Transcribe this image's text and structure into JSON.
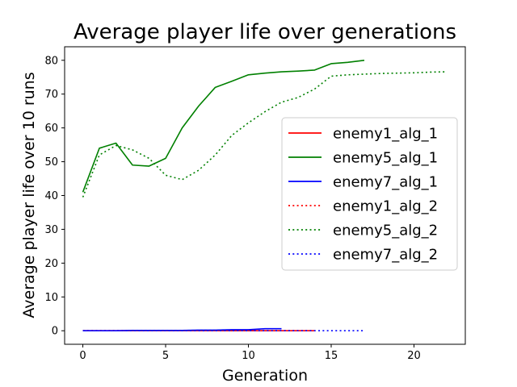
{
  "chart_data": {
    "type": "line",
    "title": "Average player life over generations",
    "xlabel": "Generation",
    "ylabel": "Average player life over 10 runs",
    "xlim": [
      -1.1,
      23.1
    ],
    "ylim": [
      -4,
      84
    ],
    "xticks": [
      0,
      5,
      10,
      15,
      20
    ],
    "yticks": [
      0,
      10,
      20,
      30,
      40,
      50,
      60,
      70,
      80
    ],
    "grid": false,
    "legend_position": "center-right",
    "series": [
      {
        "name": "enemy1_alg_1",
        "color": "#ff0000",
        "style": "solid",
        "x": [
          0,
          1,
          2,
          3,
          4,
          5,
          6,
          7,
          8,
          9,
          10,
          11,
          12,
          13,
          14
        ],
        "y": [
          0,
          0,
          0,
          0,
          0,
          0,
          0,
          0,
          0,
          0,
          0,
          0,
          0,
          0,
          0
        ]
      },
      {
        "name": "enemy5_alg_1",
        "color": "#008000",
        "style": "solid",
        "x": [
          0,
          1,
          2,
          3,
          4,
          5,
          6,
          7,
          8,
          9,
          10,
          11,
          12,
          13,
          14,
          15,
          16,
          17
        ],
        "y": [
          41,
          54,
          55.5,
          49,
          48.7,
          51,
          60,
          66.5,
          72,
          73.8,
          75.7,
          76.2,
          76.6,
          76.8,
          77.1,
          79,
          79.4,
          80
        ]
      },
      {
        "name": "enemy7_alg_1",
        "color": "#0000ff",
        "style": "solid",
        "x": [
          0,
          1,
          2,
          3,
          4,
          5,
          6,
          7,
          8,
          9,
          10,
          11,
          12
        ],
        "y": [
          0,
          0,
          0,
          0.1,
          0.1,
          0.1,
          0.1,
          0.2,
          0.2,
          0.3,
          0.3,
          0.6,
          0.6
        ]
      },
      {
        "name": "enemy1_alg_2",
        "color": "#ff0000",
        "style": "dotted",
        "x": [
          0,
          2,
          4,
          6,
          8,
          10,
          12,
          14
        ],
        "y": [
          0,
          0,
          0,
          0,
          0,
          0,
          0,
          0
        ]
      },
      {
        "name": "enemy5_alg_2",
        "color": "#008000",
        "style": "dotted",
        "x": [
          0,
          1,
          2,
          3,
          4,
          5,
          6,
          7,
          8,
          9,
          10,
          11,
          12,
          13,
          14,
          15,
          16,
          17,
          18,
          19,
          20,
          21,
          22
        ],
        "y": [
          39.5,
          52,
          54.8,
          53.5,
          51,
          46,
          44.7,
          47.5,
          52,
          57.8,
          61.5,
          64.8,
          67.6,
          69,
          71.5,
          75.3,
          75.7,
          75.9,
          76.1,
          76.2,
          76.3,
          76.5,
          76.6
        ]
      },
      {
        "name": "enemy7_alg_2",
        "color": "#0000ff",
        "style": "dotted",
        "x": [
          0,
          2,
          4,
          6,
          8,
          10,
          12,
          14,
          16,
          17
        ],
        "y": [
          0,
          0,
          0,
          0,
          0,
          0,
          0,
          0,
          0,
          0
        ]
      }
    ]
  }
}
